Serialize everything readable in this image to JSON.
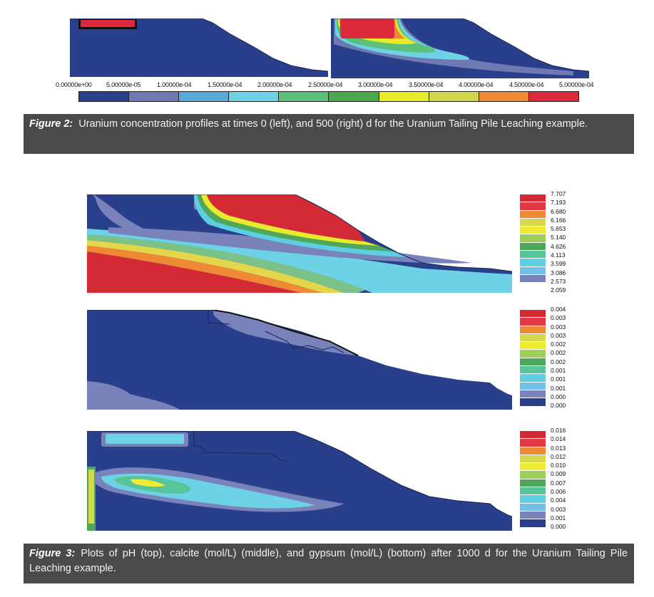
{
  "figure2": {
    "colorbar_labels": [
      "0.00000e+00",
      "5.00000e-05",
      "1.00000e-04",
      "1.50000e-04",
      "2.00000e-04",
      "2.50000e-04",
      "3.00000e-04",
      "3.50000e-04",
      "4.00000e-04",
      "4.50000e-04",
      "5.00000e-04"
    ],
    "colorbar_colors": [
      "#2a3f8c",
      "#6f7ab3",
      "#58a8d8",
      "#6ed2e6",
      "#5cbf7a",
      "#4aa84e",
      "#e8ea2c",
      "#d2d64a",
      "#ee8a36",
      "#dc2a3a"
    ],
    "caption_label": "Figure 2:",
    "caption_text": "Uranium concentration profiles at times 0 (left), and 500 (right) d for the Uranium Tailing Pile Leaching example."
  },
  "figure3": {
    "panels": [
      {
        "name": "pH",
        "legend_labels": [
          "7.707",
          "7.193",
          "6.680",
          "6.166",
          "5.653",
          "5.140",
          "4.626",
          "4.113",
          "3.599",
          "3.086",
          "2.573",
          "2.059"
        ]
      },
      {
        "name": "calcite",
        "legend_labels": [
          "0.004",
          "0.003",
          "0.003",
          "0.003",
          "0.002",
          "0.002",
          "0.002",
          "0.001",
          "0.001",
          "0.001",
          "0.000",
          "0.000"
        ]
      },
      {
        "name": "gypsum",
        "legend_labels": [
          "0.016",
          "0.014",
          "0.013",
          "0.012",
          "0.010",
          "0.009",
          "0.007",
          "0.006",
          "0.004",
          "0.003",
          "0.001",
          "0.000"
        ]
      }
    ],
    "legend_colors": [
      "#d42a36",
      "#e03844",
      "#ee8a36",
      "#d6d84e",
      "#ecec30",
      "#9ecf5a",
      "#4fa85a",
      "#58c49a",
      "#5ecfe2",
      "#72bfe8",
      "#7a82bc",
      "#2a3f8c"
    ],
    "caption_label": "Figure 3:",
    "caption_text": "Plots of pH (top), calcite (mol/L) (middle), and gypsum (mol/L) (bottom) after 1000 d for the Uranium Tailing Pile Leaching example."
  }
}
